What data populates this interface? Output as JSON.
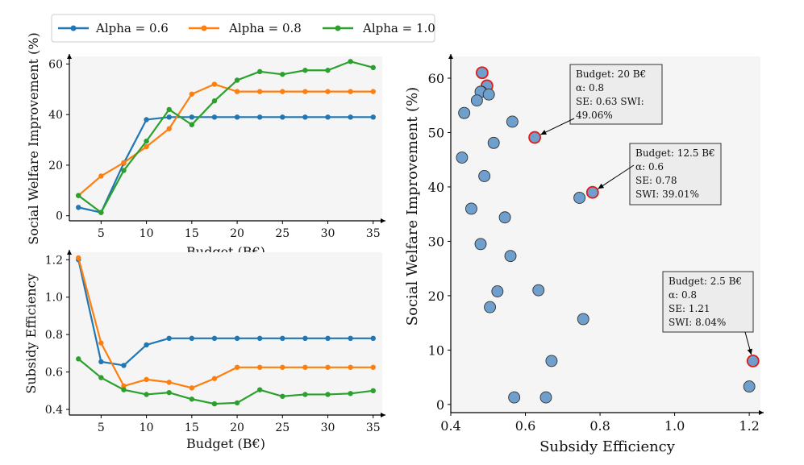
{
  "legend": {
    "items": [
      {
        "label": "Alpha = 0.6",
        "color": "#1f77b4"
      },
      {
        "label": "Alpha = 0.8",
        "color": "#ff7f0e"
      },
      {
        "label": "Alpha = 1.0",
        "color": "#2ca02c"
      }
    ]
  },
  "chart_data": [
    {
      "id": "swi-vs-budget",
      "type": "line",
      "xlabel": "Budget (B€)",
      "ylabel": "Social Welfare Improvement (%)",
      "xlim": [
        1.5,
        36
      ],
      "ylim": [
        -2,
        63
      ],
      "xticks": [
        5,
        10,
        15,
        20,
        25,
        30,
        35
      ],
      "yticks": [
        0,
        20,
        40,
        60
      ],
      "x": [
        2.5,
        5,
        7.5,
        10,
        12.5,
        15,
        17.5,
        20,
        22.5,
        25,
        27.5,
        30,
        32.5,
        35
      ],
      "series": [
        {
          "name": "Alpha = 0.6",
          "color": "#1f77b4",
          "values": [
            3.3,
            1.3,
            20.8,
            38.0,
            39.0,
            39.0,
            39.0,
            39.0,
            39.0,
            39.0,
            39.0,
            39.0,
            39.0,
            39.0
          ]
        },
        {
          "name": "Alpha = 0.8",
          "color": "#ff7f0e",
          "values": [
            8.0,
            15.7,
            21.0,
            27.3,
            34.4,
            48.1,
            52.0,
            49.1,
            49.1,
            49.1,
            49.1,
            49.1,
            49.1,
            49.1
          ]
        },
        {
          "name": "Alpha = 1.0",
          "color": "#2ca02c",
          "values": [
            8.0,
            1.3,
            17.9,
            29.5,
            42.0,
            36.0,
            45.4,
            53.6,
            57.0,
            55.9,
            57.5,
            57.5,
            61.0,
            58.6
          ]
        }
      ]
    },
    {
      "id": "se-vs-budget",
      "type": "line",
      "xlabel": "Budget (B€)",
      "ylabel": "Subsidy Efficiency",
      "xlim": [
        1.5,
        36
      ],
      "ylim": [
        0.37,
        1.24
      ],
      "xticks": [
        5,
        10,
        15,
        20,
        25,
        30,
        35
      ],
      "yticks": [
        0.4,
        0.6,
        0.8,
        1.0,
        1.2
      ],
      "ytick_labels": [
        "0.4",
        "0.6",
        "0.8",
        "1.0",
        "1.2"
      ],
      "x": [
        2.5,
        5,
        7.5,
        10,
        12.5,
        15,
        17.5,
        20,
        22.5,
        25,
        27.5,
        30,
        32.5,
        35
      ],
      "series": [
        {
          "name": "Alpha = 0.6",
          "color": "#1f77b4",
          "values": [
            1.2,
            0.655,
            0.635,
            0.745,
            0.78,
            0.78,
            0.78,
            0.78,
            0.78,
            0.78,
            0.78,
            0.78,
            0.78,
            0.78
          ]
        },
        {
          "name": "Alpha = 0.8",
          "color": "#ff7f0e",
          "values": [
            1.21,
            0.755,
            0.525,
            0.56,
            0.545,
            0.515,
            0.565,
            0.625,
            0.625,
            0.625,
            0.625,
            0.625,
            0.625,
            0.625
          ]
        },
        {
          "name": "Alpha = 1.0",
          "color": "#2ca02c",
          "values": [
            0.67,
            0.57,
            0.505,
            0.48,
            0.49,
            0.455,
            0.43,
            0.435,
            0.505,
            0.47,
            0.48,
            0.48,
            0.485,
            0.5
          ]
        }
      ]
    },
    {
      "id": "swi-vs-se",
      "type": "scatter",
      "xlabel": "Subsidy Efficiency",
      "ylabel": "Social Welfare Improvement (%)",
      "xlim": [
        0.4,
        1.23
      ],
      "ylim": [
        -1.5,
        64
      ],
      "xticks": [
        0.4,
        0.6,
        0.8,
        1.0,
        1.2
      ],
      "xtick_labels": [
        "0.4",
        "0.6",
        "0.8",
        "1.0",
        "1.2"
      ],
      "yticks": [
        0,
        10,
        20,
        30,
        40,
        50,
        60
      ],
      "point_color": "#6f9fcc",
      "highlight_color": "#e31a1c",
      "points": [
        {
          "x": 0.484,
          "y": 61.0,
          "highlight": true
        },
        {
          "x": 0.497,
          "y": 58.6,
          "highlight": true
        },
        {
          "x": 0.482,
          "y": 57.5,
          "highlight": false
        },
        {
          "x": 0.48,
          "y": 57.5,
          "highlight": false
        },
        {
          "x": 0.502,
          "y": 57.0,
          "highlight": false
        },
        {
          "x": 0.47,
          "y": 55.9,
          "highlight": false
        },
        {
          "x": 0.436,
          "y": 53.6,
          "highlight": false
        },
        {
          "x": 0.565,
          "y": 52.0,
          "highlight": false
        },
        {
          "x": 0.625,
          "y": 49.1,
          "highlight": true
        },
        {
          "x": 0.515,
          "y": 48.1,
          "highlight": false
        },
        {
          "x": 0.43,
          "y": 45.4,
          "highlight": false
        },
        {
          "x": 0.49,
          "y": 42.0,
          "highlight": false
        },
        {
          "x": 0.78,
          "y": 39.0,
          "highlight": true
        },
        {
          "x": 0.745,
          "y": 38.0,
          "highlight": false
        },
        {
          "x": 0.455,
          "y": 36.0,
          "highlight": false
        },
        {
          "x": 0.545,
          "y": 34.4,
          "highlight": false
        },
        {
          "x": 0.48,
          "y": 29.5,
          "highlight": false
        },
        {
          "x": 0.56,
          "y": 27.3,
          "highlight": false
        },
        {
          "x": 0.635,
          "y": 21.0,
          "highlight": false
        },
        {
          "x": 0.525,
          "y": 20.8,
          "highlight": false
        },
        {
          "x": 0.505,
          "y": 17.9,
          "highlight": false
        },
        {
          "x": 0.755,
          "y": 15.7,
          "highlight": false
        },
        {
          "x": 1.21,
          "y": 8.0,
          "highlight": true
        },
        {
          "x": 0.67,
          "y": 8.0,
          "highlight": false
        },
        {
          "x": 1.2,
          "y": 3.3,
          "highlight": false
        },
        {
          "x": 0.57,
          "y": 1.3,
          "highlight": false
        },
        {
          "x": 0.655,
          "y": 1.3,
          "highlight": false
        }
      ],
      "annotations": [
        {
          "point": [
            0.625,
            49.1
          ],
          "lines": [
            "Budget: 20 B€",
            "α: 0.8",
            "SE: 0.63 SWI:",
            "49.06%"
          ]
        },
        {
          "point": [
            0.78,
            39.0
          ],
          "lines": [
            "Budget: 12.5 B€",
            "α: 0.6",
            "SE: 0.78",
            "SWI: 39.01%"
          ]
        },
        {
          "point": [
            1.21,
            8.0
          ],
          "lines": [
            "Budget: 2.5 B€",
            "α: 0.8",
            "SE: 1.21",
            "SWI: 8.04%"
          ]
        }
      ]
    }
  ]
}
